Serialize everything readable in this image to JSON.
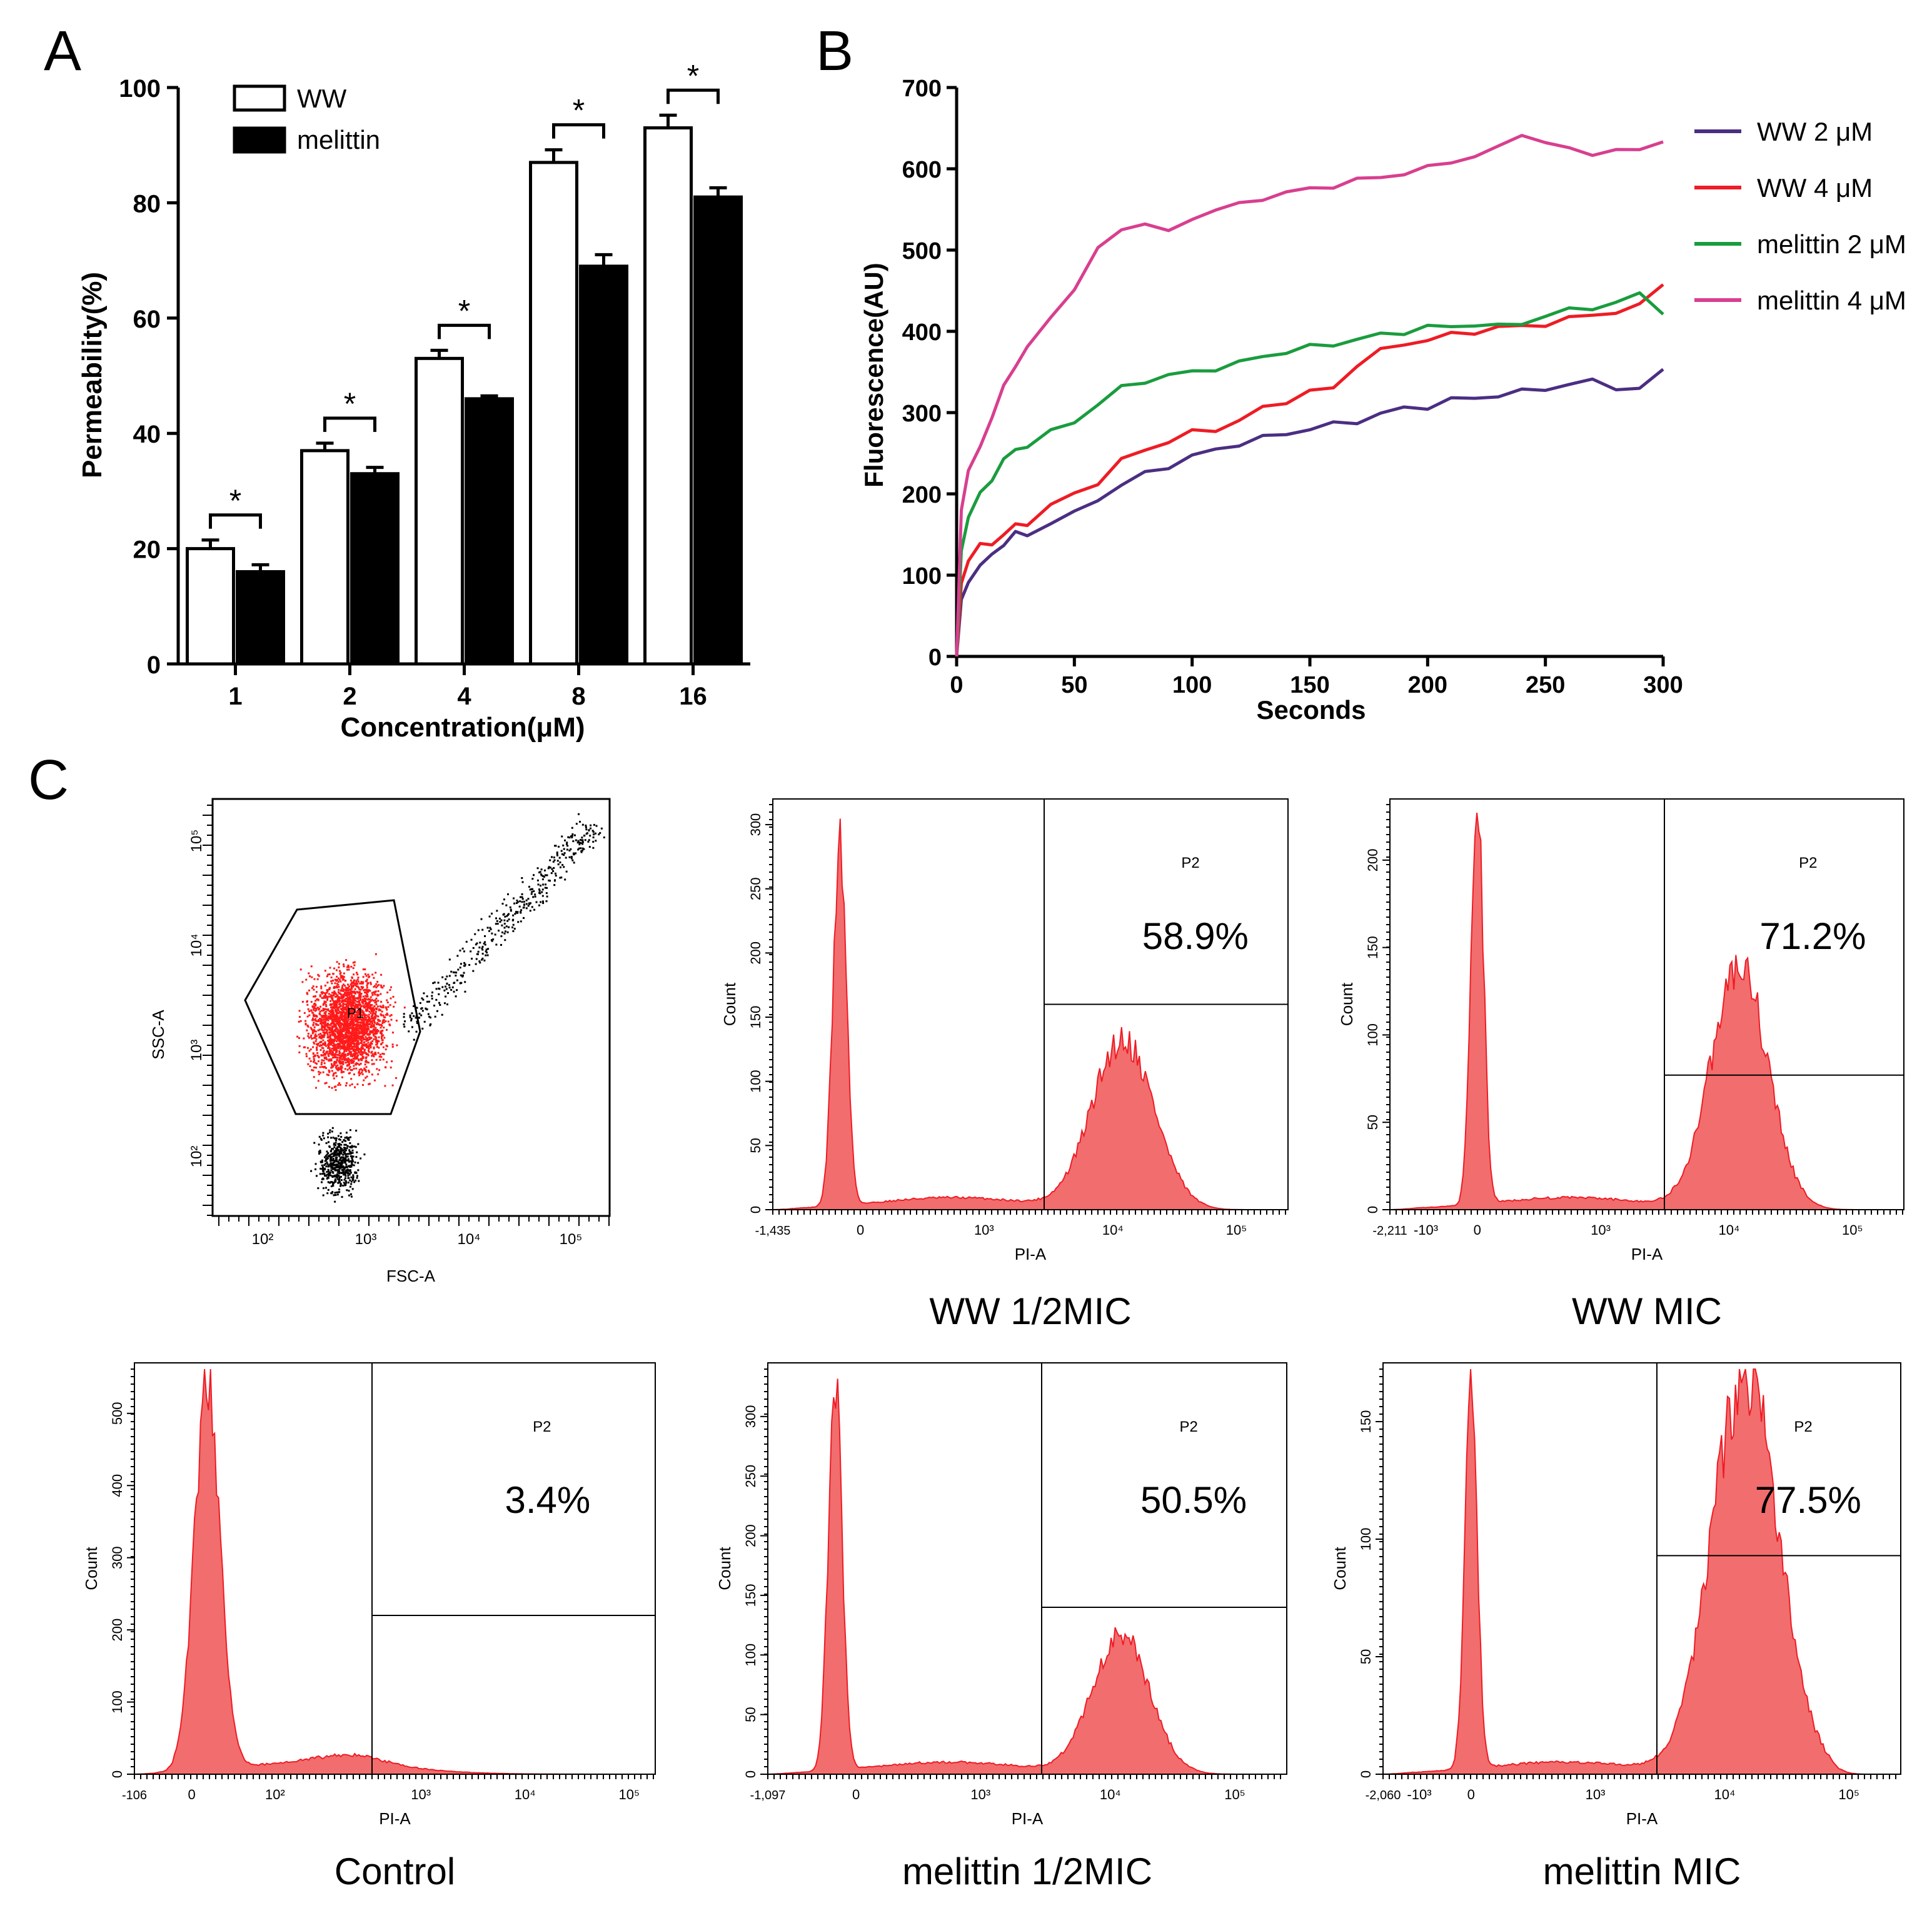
{
  "panel_labels": {
    "a": "A",
    "b": "B",
    "c": "C"
  },
  "chart_data": [
    {
      "id": "A",
      "type": "bar",
      "title": "",
      "xlabel": "Concentration(μM)",
      "ylabel": "Permeability(%)",
      "ylim": [
        0,
        100
      ],
      "yticks": [
        "0",
        "20",
        "40",
        "60",
        "80",
        "100"
      ],
      "categories": [
        "1",
        "2",
        "4",
        "8",
        "16"
      ],
      "series": [
        {
          "name": "WW",
          "fill": "#ffffff",
          "values": [
            20,
            37,
            53,
            87,
            93
          ],
          "errors": [
            1.5,
            1.3,
            1.4,
            2.2,
            2.2
          ]
        },
        {
          "name": "melittin",
          "fill": "#000000",
          "values": [
            16,
            33,
            46,
            69,
            81
          ],
          "errors": [
            1.2,
            1.1,
            0.5,
            2.0,
            1.6
          ]
        }
      ],
      "significance": [
        "*",
        "*",
        "*",
        "*",
        "*"
      ],
      "legend_position": "top-left"
    },
    {
      "id": "B",
      "type": "line",
      "title": "",
      "xlabel": "Seconds",
      "ylabel": "Fluorescence(AU)",
      "xlim": [
        0,
        300
      ],
      "ylim": [
        0,
        700
      ],
      "xticks": [
        "0",
        "50",
        "100",
        "150",
        "200",
        "250",
        "300"
      ],
      "yticks": [
        "0",
        "100",
        "200",
        "300",
        "400",
        "500",
        "600",
        "700"
      ],
      "x": [
        0,
        2,
        5,
        10,
        15,
        20,
        25,
        30,
        40,
        50,
        60,
        70,
        80,
        90,
        100,
        110,
        120,
        130,
        140,
        150,
        160,
        170,
        180,
        190,
        200,
        210,
        220,
        230,
        240,
        250,
        260,
        270,
        280,
        290,
        300
      ],
      "series": [
        {
          "name": "WW 2 μM",
          "color": "#4b2e83",
          "values": [
            0,
            70,
            95,
            110,
            125,
            140,
            150,
            150,
            165,
            175,
            195,
            210,
            225,
            235,
            245,
            255,
            262,
            268,
            275,
            280,
            285,
            290,
            298,
            305,
            308,
            315,
            318,
            322,
            325,
            330,
            335,
            338,
            332,
            328,
            352
          ]
        },
        {
          "name": "WW 4 μM",
          "color": "#ee1c25",
          "values": [
            0,
            90,
            120,
            135,
            140,
            150,
            160,
            165,
            185,
            200,
            215,
            240,
            255,
            265,
            275,
            280,
            290,
            305,
            315,
            325,
            330,
            360,
            375,
            385,
            390,
            395,
            400,
            405,
            405,
            410,
            415,
            420,
            425,
            430,
            460
          ]
        },
        {
          "name": "melittin 2 μM",
          "color": "#1a9c3e",
          "values": [
            0,
            130,
            170,
            200,
            220,
            240,
            255,
            260,
            275,
            290,
            310,
            330,
            340,
            345,
            350,
            355,
            360,
            370,
            375,
            380,
            385,
            390,
            395,
            400,
            405,
            405,
            410,
            405,
            410,
            420,
            425,
            430,
            435,
            445,
            425
          ]
        },
        {
          "name": "melittin 4 μM",
          "color": "#d83f8f",
          "values": [
            0,
            180,
            225,
            260,
            295,
            330,
            360,
            380,
            415,
            455,
            500,
            525,
            535,
            520,
            540,
            550,
            555,
            565,
            570,
            575,
            580,
            585,
            590,
            595,
            600,
            610,
            615,
            625,
            645,
            630,
            625,
            620,
            620,
            625,
            635
          ]
        }
      ],
      "legend_position": "right"
    }
  ],
  "flow": {
    "scatter": {
      "xlabel": "FSC-A",
      "ylabel": "SSC-A",
      "gate": "P1",
      "xticks": [
        "10²",
        "10³",
        "10⁴",
        "10⁵"
      ],
      "yticks": [
        "10²",
        "10³",
        "10⁴",
        "10⁵"
      ]
    },
    "histograms": [
      {
        "id": "ww-half-mic",
        "caption": "WW 1/2MIC",
        "percent": "58.9%",
        "gate": "P2",
        "xlabel": "PI-A",
        "ylabel": "Count",
        "xmin_label": "-1,435",
        "yticks": [
          "0",
          "50",
          "100",
          "150",
          "200",
          "250",
          "300"
        ],
        "ymax": 320,
        "marker_level": 160
      },
      {
        "id": "ww-mic",
        "caption": "WW MIC",
        "percent": "71.2%",
        "gate": "P2",
        "xlabel": "PI-A",
        "ylabel": "Count",
        "xmin_label": "-2,211",
        "yticks": [
          "0",
          "50",
          "100",
          "150",
          "200"
        ],
        "ymax": 235,
        "marker_level": 77
      },
      {
        "id": "control",
        "caption": "Control",
        "percent": "3.4%",
        "gate": "P2",
        "xlabel": "PI-A",
        "ylabel": "Count",
        "xmin_label": "-106",
        "yticks": [
          "0",
          "100",
          "200",
          "300",
          "400",
          "500"
        ],
        "ymax": 570,
        "marker_level": 220
      },
      {
        "id": "melittin-half-mic",
        "caption": "melittin 1/2MIC",
        "percent": "50.5%",
        "gate": "P2",
        "xlabel": "PI-A",
        "ylabel": "Count",
        "xmin_label": "-1,097",
        "yticks": [
          "0",
          "50",
          "100",
          "150",
          "200",
          "250",
          "300"
        ],
        "ymax": 345,
        "marker_level": 140
      },
      {
        "id": "melittin-mic",
        "caption": "melittin MIC",
        "percent": "77.5%",
        "gate": "P2",
        "xlabel": "PI-A",
        "ylabel": "Count",
        "xmin_label": "-2,060",
        "yticks": [
          "0",
          "50",
          "100",
          "150"
        ],
        "ymax": 175,
        "marker_level": 93
      }
    ],
    "x_tick_labels": [
      "0",
      "10³",
      "10⁴",
      "10⁵"
    ],
    "control_x_tick_labels": [
      "0",
      "10²",
      "10³",
      "10⁴",
      "10⁵"
    ],
    "neg_tick_label": "-10³",
    "fill_color": "#f26d6d",
    "line_color": "#ee1c25"
  }
}
